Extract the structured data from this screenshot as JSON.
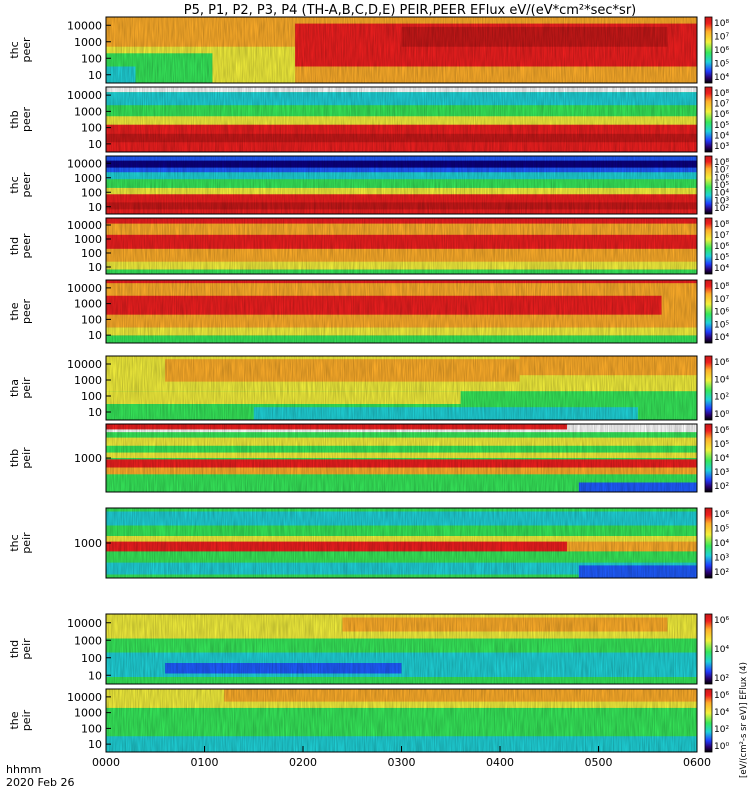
{
  "title": "P5, P1, P2, P3, P4 (TH-A,B,C,D,E) PEIR,PEER EFlux eV/(eV*cm²*sec*sr)",
  "colorbar_unit": "[eV/(cm²-s sr eV)] EFlux (4)",
  "colors": {
    "low": "#0b0080",
    "blue": "#1f5cff",
    "cyan": "#1fd2d8",
    "green": "#36e85a",
    "yellow": "#f4f03c",
    "orange": "#ffae2a",
    "red": "#ef1f1f",
    "high": "#c81818"
  },
  "chart_data": {
    "type": "heatmap",
    "x_label_line1": "hhmm",
    "x_label_line2": "2020 Feb 26",
    "x_ticks": [
      "0000",
      "0100",
      "0200",
      "0300",
      "0400",
      "0500",
      "0600"
    ],
    "panels": [
      {
        "name": "thc peer",
        "ylabel1": "thc",
        "ylabel2": "peer",
        "yticks": [
          "10000",
          "1000",
          "100",
          "10"
        ],
        "cbar_ticks": [
          "10⁸",
          "10⁷",
          "10⁶",
          "10⁵",
          "10⁴"
        ],
        "dominant": "yellow/red, red band after 0200"
      },
      {
        "name": "thb peer",
        "ylabel1": "thb",
        "ylabel2": "peer",
        "yticks": [
          "10000",
          "1000",
          "100",
          "10"
        ],
        "cbar_ticks": [
          "10⁸",
          "10⁷",
          "10⁶",
          "10⁵",
          "10⁴",
          "10³"
        ],
        "dominant": "green top, red band low energy"
      },
      {
        "name": "thc peer",
        "ylabel1": "thc",
        "ylabel2": "peer",
        "yticks": [
          "10000",
          "1000",
          "100",
          "10"
        ],
        "cbar_ticks": [
          "10⁸",
          "10⁷",
          "10⁶",
          "10⁵",
          "10⁴",
          "10³",
          "10²"
        ],
        "dominant": "blue top, red band low energy"
      },
      {
        "name": "thd peer",
        "ylabel1": "thd",
        "ylabel2": "peer",
        "yticks": [
          "10000",
          "1000",
          "100",
          "10"
        ],
        "cbar_ticks": [
          "10⁸",
          "10⁷",
          "10⁶",
          "10⁵",
          "10⁴"
        ],
        "dominant": "red/orange"
      },
      {
        "name": "the peer",
        "ylabel1": "the",
        "ylabel2": "peer",
        "yticks": [
          "10000",
          "1000",
          "100",
          "10"
        ],
        "cbar_ticks": [
          "10⁸",
          "10⁷",
          "10⁶",
          "10⁵",
          "10⁴"
        ],
        "dominant": "red/orange"
      },
      {
        "name": "tha peir",
        "ylabel1": "tha",
        "ylabel2": "peir",
        "yticks": [
          "10000",
          "1000",
          "100",
          "10"
        ],
        "cbar_ticks": [
          "10⁶",
          "10⁴",
          "10²",
          "10⁰"
        ],
        "dominant": "yellow/orange"
      },
      {
        "name": "thb peir",
        "ylabel1": "thb",
        "ylabel2": "peir",
        "yticks": [
          "1000"
        ],
        "cbar_ticks": [
          "10⁶",
          "10⁵",
          "10⁴",
          "10³",
          "10²"
        ],
        "dominant": "horizontal bands"
      },
      {
        "name": "thc peir",
        "ylabel1": "thc",
        "ylabel2": "peir",
        "yticks": [
          "1000"
        ],
        "cbar_ticks": [
          "10⁶",
          "10⁵",
          "10⁴",
          "10³",
          "10²"
        ],
        "dominant": "horizontal bands"
      },
      {
        "name": "thd peir",
        "ylabel1": "thd",
        "ylabel2": "peir",
        "yticks": [
          "10000",
          "1000",
          "100",
          "10"
        ],
        "cbar_ticks": [
          "10⁶",
          "10⁴",
          "10²"
        ],
        "dominant": "green/yellow"
      },
      {
        "name": "the peir",
        "ylabel1": "the",
        "ylabel2": "peir",
        "yticks": [
          "10000",
          "1000",
          "100",
          "10"
        ],
        "cbar_ticks": [
          "10⁶",
          "10⁴",
          "10²",
          "10⁰"
        ],
        "dominant": "green/yellow/orange"
      }
    ]
  }
}
